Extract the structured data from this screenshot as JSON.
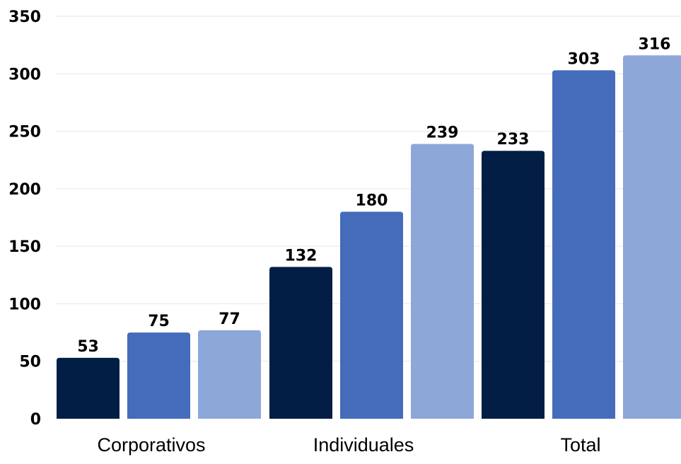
{
  "chart_data": {
    "type": "bar",
    "title": "",
    "xlabel": "",
    "ylabel": "",
    "categories": [
      "Corporativos",
      "Individuales",
      "Total"
    ],
    "series": [
      {
        "color": "#031e45",
        "values": [
          53,
          132,
          233
        ]
      },
      {
        "color": "#456bbb",
        "values": [
          75,
          180,
          303
        ]
      },
      {
        "color": "#8da7d9",
        "values": [
          77,
          239,
          316
        ]
      }
    ],
    "ylim": [
      0,
      350
    ],
    "yticks": [
      0,
      50,
      100,
      150,
      200,
      250,
      300,
      350
    ],
    "grid": true,
    "legend": "none",
    "data_labels": true
  }
}
